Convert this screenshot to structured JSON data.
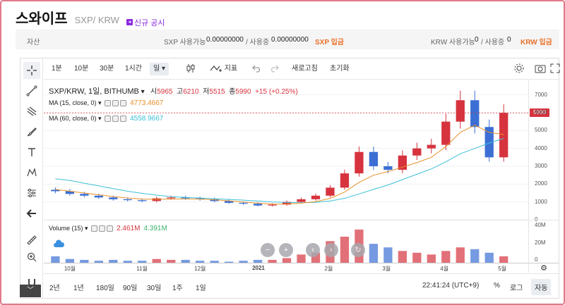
{
  "header": {
    "coin_name": "스와이프",
    "pair": "SXP/ KRW",
    "notice_label": "신규 공시"
  },
  "asset_bar": {
    "left_label": "자산",
    "sxp_label": "SXP 사용가능",
    "sxp_available": "0.00000000",
    "sxp_used_label": "/ 사용중",
    "sxp_used": "0.00000000",
    "sxp_deposit": "SXP 입금",
    "krw_label": "KRW 사용가능",
    "krw_available": "0",
    "krw_used_label": "/ 사용중",
    "krw_used": "0",
    "krw_deposit": "KRW 입금"
  },
  "toolbar": {
    "intervals": [
      "1분",
      "10분",
      "30분",
      "1시간",
      "일"
    ],
    "selected_interval": "일",
    "indicator_label": "지표",
    "refresh_label": "새로고침",
    "reset_label": "초기화"
  },
  "legend": {
    "symbol": "SXP/KRW, 1일, BITHUMB",
    "open_label": "시",
    "open": "5965",
    "high_label": "고",
    "high": "6210",
    "low_label": "저",
    "low": "5515",
    "close_label": "종",
    "close": "5990",
    "change": "+15 (+0.25%)",
    "ma15_label": "MA (15, close, 0)",
    "ma15_value": "4773.4667",
    "ma60_label": "MA (60, close, 0)",
    "ma60_value": "4558.9667",
    "volume_label": "Volume (15)",
    "vol_a": "2.461M",
    "vol_b": "4.391M"
  },
  "price_axis": {
    "ticks": [
      "7000",
      "6000",
      "5000",
      "4000",
      "3000",
      "2000",
      "1000",
      "0"
    ],
    "current_price": "5990"
  },
  "volume_axis": {
    "ticks": [
      "40M",
      "20M",
      "0"
    ]
  },
  "time_axis": {
    "ticks": [
      "10월",
      "11월",
      "12월",
      "2021",
      "2월",
      "3월",
      "4월",
      "5월"
    ]
  },
  "bottom_bar": {
    "ranges": [
      "2년",
      "1년",
      "180일",
      "90일",
      "30일",
      "1주",
      "1일"
    ],
    "clock": "22:41:24 (UTC+9)",
    "percent": "%",
    "log": "로그",
    "auto": "자동"
  },
  "colors": {
    "up": "#d6333e",
    "down": "#3b6fd4",
    "ma15": "#e8902a",
    "ma60": "#3cc0d8",
    "accent_orange": "#e8702a",
    "notice_purple": "#8a2be2"
  },
  "chart_data": {
    "type": "candlestick",
    "x": [
      "2020-09-26",
      "2020-10-03",
      "2020-10-10",
      "2020-10-17",
      "2020-10-24",
      "2020-10-31",
      "2020-11-07",
      "2020-11-14",
      "2020-11-21",
      "2020-11-28",
      "2020-12-05",
      "2020-12-12",
      "2020-12-19",
      "2020-12-26",
      "2021-01-02",
      "2021-01-09",
      "2021-01-16",
      "2021-01-23",
      "2021-01-30",
      "2021-02-06",
      "2021-02-13",
      "2021-02-20",
      "2021-02-27",
      "2021-03-06",
      "2021-03-13",
      "2021-03-20",
      "2021-03-27",
      "2021-04-03",
      "2021-04-10",
      "2021-04-17",
      "2021-04-24",
      "2021-05-01"
    ],
    "close": [
      1600,
      1450,
      1350,
      1250,
      1150,
      1100,
      1050,
      1200,
      1250,
      1200,
      1150,
      1050,
      950,
      900,
      800,
      850,
      1000,
      1150,
      1350,
      1800,
      2600,
      3800,
      3000,
      2800,
      3600,
      4000,
      4200,
      5500,
      6700,
      5200,
      3500,
      5990
    ],
    "ma15": [
      1700,
      1600,
      1500,
      1400,
      1300,
      1220,
      1160,
      1150,
      1160,
      1170,
      1160,
      1120,
      1060,
      1000,
      930,
      880,
      880,
      930,
      1020,
      1200,
      1550,
      2100,
      2500,
      2700,
      2950,
      3200,
      3500,
      4100,
      4900,
      5300,
      4900,
      4773
    ],
    "ma60": [
      2300,
      2200,
      2050,
      1900,
      1750,
      1600,
      1480,
      1380,
      1300,
      1250,
      1220,
      1180,
      1140,
      1100,
      1050,
      1000,
      970,
      960,
      980,
      1050,
      1200,
      1450,
      1700,
      1950,
      2250,
      2550,
      2850,
      3250,
      3700,
      4000,
      4300,
      4559
    ],
    "volume_unit": "M",
    "volume": [
      8,
      5,
      4,
      3,
      4,
      3,
      3,
      5,
      4,
      4,
      3,
      3,
      2,
      3,
      4,
      4,
      6,
      10,
      12,
      25,
      30,
      38,
      22,
      18,
      14,
      12,
      10,
      14,
      18,
      16,
      12,
      8
    ],
    "ylim": [
      0,
      7500
    ],
    "volume_ylim": [
      0,
      45
    ]
  }
}
